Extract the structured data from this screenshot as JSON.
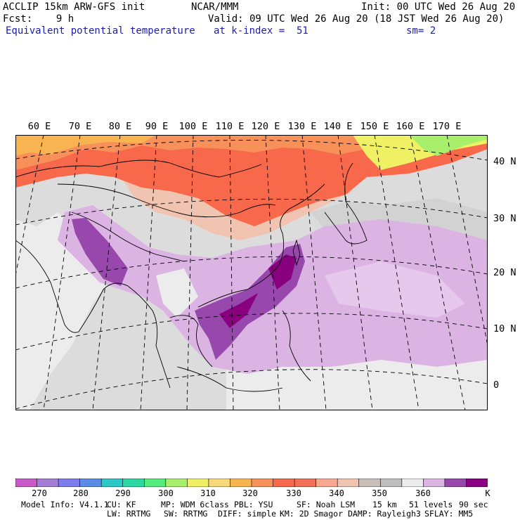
{
  "header": {
    "model": "ACCLIP 15km ARW-GFS init",
    "org": "NCAR/MMM",
    "init": "Init: 00 UTC Wed 26 Aug 20",
    "fcst": "Fcst:    9 h",
    "valid": "Valid: 09 UTC Wed 26 Aug 20 (18 JST Wed 26 Aug 20)",
    "field": "Equivalent potential temperature",
    "level": "at k-index =  51",
    "smooth": "sm= 2"
  },
  "map": {
    "lon_labels": [
      "60 E",
      "70 E",
      "80 E",
      "90 E",
      "100 E",
      "110 E",
      "120 E",
      "130 E",
      "140 E",
      "150 E",
      "160 E",
      "170 E"
    ],
    "lat_labels": [
      "40 N",
      "30 N",
      "20 N",
      "10 N",
      "0"
    ]
  },
  "colorbar": {
    "colors": [
      "#c85ac8",
      "#a47cd6",
      "#7c7cec",
      "#5a8ce6",
      "#2cc8c8",
      "#2cd8a0",
      "#54ec7c",
      "#a8f06c",
      "#f0f064",
      "#f8d878",
      "#f8b450",
      "#f8905a",
      "#f8684a",
      "#f0705a",
      "#f8a890",
      "#f0c4b0",
      "#c8c0b8",
      "#bebebe",
      "#ececec",
      "#dcb4e4",
      "#9848ac",
      "#880080"
    ],
    "labels": [
      "270",
      "280",
      "290",
      "300",
      "310",
      "320",
      "330",
      "340",
      "350",
      "360"
    ],
    "unit": "K"
  },
  "footer": {
    "line1": [
      "Model Info: V4.1.1",
      "CU: KF",
      "MP: WDM 6class",
      "PBL: YSU",
      "SF: Noah LSM",
      "15 km",
      "51 levels",
      "90 sec"
    ],
    "line2": [
      "LW: RRTMG",
      "SW: RRTMG",
      "DIFF: simple",
      "KM: 2D Smagor",
      "DAMP: Rayleigh3",
      "SFLAY: MM5"
    ]
  }
}
